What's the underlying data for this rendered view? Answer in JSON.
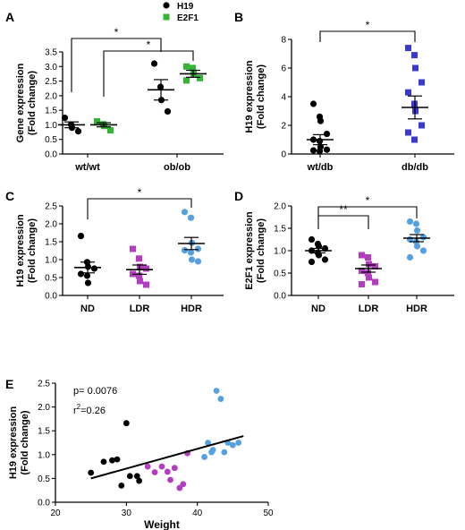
{
  "colors": {
    "black": "#000000",
    "green": "#33b533",
    "navy": "#3a3ad0",
    "purple": "#b43cc0",
    "lightblue": "#55a0e0"
  },
  "chart_data": [
    {
      "panel": "A",
      "type": "scatter",
      "ylabel_line1": "Gene expression",
      "ylabel_line2": "(Fold change)",
      "ylim": [
        0,
        3.5
      ],
      "yticks": [
        "0.0",
        "0.5",
        "1.0",
        "1.5",
        "2.0",
        "2.5",
        "3.0",
        "3.5"
      ],
      "categories": [
        "wt/wt",
        "ob/ob"
      ],
      "legend": [
        {
          "name": "H19",
          "color": "#000000",
          "shape": "circle"
        },
        {
          "name": "E2F1",
          "color": "#33b533",
          "shape": "square"
        }
      ],
      "groups": [
        {
          "category": "wt/wt",
          "series": "H19",
          "color": "#000000",
          "shape": "circle",
          "values": [
            1.24,
            1.01,
            0.9,
            0.78
          ],
          "mean": 1.0,
          "sem": 0.1
        },
        {
          "category": "wt/wt",
          "series": "E2F1",
          "color": "#33b533",
          "shape": "square",
          "values": [
            1.12,
            1.02,
            0.96,
            0.81
          ],
          "mean": 1.0,
          "sem": 0.07
        },
        {
          "category": "ob/ob",
          "series": "H19",
          "color": "#000000",
          "shape": "circle",
          "values": [
            3.1,
            2.3,
            1.85,
            1.46
          ],
          "mean": 2.2,
          "sem": 0.35
        },
        {
          "category": "ob/ob",
          "series": "E2F1",
          "color": "#33b533",
          "shape": "square",
          "values": [
            3.0,
            2.95,
            2.75,
            2.6,
            2.52
          ],
          "mean": 2.75,
          "sem": 0.12
        }
      ],
      "brackets": [
        {
          "label": "*"
        },
        {
          "label": "*"
        }
      ]
    },
    {
      "panel": "B",
      "type": "scatter",
      "ylabel_line1": "H19 expression",
      "ylabel_line2": "(Fold change)",
      "ylim": [
        0,
        8
      ],
      "yticks": [
        "0",
        "2",
        "4",
        "6",
        "8"
      ],
      "categories": [
        "wt/db",
        "db/db"
      ],
      "groups": [
        {
          "category": "wt/db",
          "color": "#000000",
          "shape": "circle",
          "values": [
            3.5,
            2.6,
            2.3,
            1.4,
            1.0,
            0.9,
            0.5,
            0.3,
            0.25,
            0.2
          ],
          "mean": 1.0,
          "sem": 0.35
        },
        {
          "category": "db/db",
          "color": "#3a3ad0",
          "shape": "square",
          "values": [
            7.4,
            6.9,
            6.0,
            5.0,
            4.3,
            3.5,
            3.0,
            2.0,
            1.5,
            1.0
          ],
          "mean": 3.25,
          "sem": 0.8
        }
      ],
      "brackets": [
        {
          "label": "*"
        }
      ]
    },
    {
      "panel": "C",
      "type": "scatter",
      "ylabel_line1": "H19 expression",
      "ylabel_line2": "(Fold change)",
      "ylim": [
        0,
        2.5
      ],
      "yticks": [
        "0.0",
        "0.5",
        "1.0",
        "1.5",
        "2.0",
        "2.5"
      ],
      "categories": [
        "ND",
        "LDR",
        "HDR"
      ],
      "groups": [
        {
          "category": "ND",
          "color": "#000000",
          "shape": "circle",
          "values": [
            1.66,
            0.93,
            0.8,
            0.75,
            0.6,
            0.55,
            0.35
          ],
          "mean": 0.78,
          "sem": 0.15
        },
        {
          "category": "LDR",
          "color": "#b43cc0",
          "shape": "square",
          "values": [
            1.3,
            1.03,
            0.8,
            0.75,
            0.6,
            0.55,
            0.4,
            0.3
          ],
          "mean": 0.72,
          "sem": 0.13
        },
        {
          "category": "HDR",
          "color": "#55a0e0",
          "shape": "circle",
          "values": [
            2.33,
            2.17,
            1.47,
            1.3,
            1.26,
            1.2,
            1.0,
            0.95
          ],
          "mean": 1.45,
          "sem": 0.17
        }
      ],
      "brackets": [
        {
          "label": "*"
        }
      ]
    },
    {
      "panel": "D",
      "type": "scatter",
      "ylabel_line1": "E2F1 expression",
      "ylabel_line2": "(Fold change)",
      "ylim": [
        0,
        2.0
      ],
      "yticks": [
        "0.0",
        "0.5",
        "1.0",
        "1.5",
        "2.0"
      ],
      "categories": [
        "ND",
        "LDR",
        "HDR"
      ],
      "groups": [
        {
          "category": "ND",
          "color": "#000000",
          "shape": "circle",
          "values": [
            1.25,
            1.15,
            1.1,
            1.05,
            1.0,
            0.95,
            0.9,
            0.8,
            0.75
          ],
          "mean": 1.0,
          "sem": 0.05
        },
        {
          "category": "LDR",
          "color": "#b43cc0",
          "shape": "square",
          "values": [
            0.9,
            0.85,
            0.7,
            0.65,
            0.55,
            0.5,
            0.4,
            0.3,
            0.25
          ],
          "mean": 0.6,
          "sem": 0.08
        },
        {
          "category": "HDR",
          "color": "#55a0e0",
          "shape": "circle",
          "values": [
            1.65,
            1.6,
            1.45,
            1.3,
            1.25,
            1.2,
            1.1,
            1.0,
            0.85
          ],
          "mean": 1.28,
          "sem": 0.08
        }
      ],
      "brackets": [
        {
          "label": "**"
        },
        {
          "label": "*"
        }
      ]
    },
    {
      "panel": "E",
      "type": "scatter",
      "ylabel_line1": "H19 expression",
      "ylabel_line2": "(Fold change)",
      "xlabel": "Weight",
      "xlim": [
        20,
        50
      ],
      "xticks": [
        "20",
        "30",
        "40",
        "50"
      ],
      "ylim": [
        0,
        2.5
      ],
      "yticks": [
        "0.0",
        "0.5",
        "1.0",
        "1.5",
        "2.0",
        "2.5"
      ],
      "annotation_p": "p= 0.0076",
      "annotation_r_prefix": "r",
      "annotation_r_sup": "2",
      "annotation_r_suffix": "=0.26",
      "fit_line": {
        "x": [
          25,
          46.5
        ],
        "y": [
          0.5,
          1.39
        ]
      },
      "series": [
        {
          "color": "#000000",
          "points": [
            [
              25,
              0.62
            ],
            [
              26.8,
              0.85
            ],
            [
              28,
              0.88
            ],
            [
              29.3,
              0.35
            ],
            [
              30,
              1.66
            ],
            [
              30.5,
              0.55
            ],
            [
              31.5,
              0.55
            ],
            [
              31.8,
              0.45
            ],
            [
              28.7,
              0.9
            ]
          ]
        },
        {
          "color": "#b43cc0",
          "points": [
            [
              33,
              0.75
            ],
            [
              34,
              0.63
            ],
            [
              35,
              0.75
            ],
            [
              36.2,
              0.47
            ],
            [
              36.8,
              0.72
            ],
            [
              37.5,
              0.3
            ],
            [
              38,
              0.38
            ],
            [
              38.6,
              1.03
            ],
            [
              35.8,
              0.64
            ]
          ]
        },
        {
          "color": "#55a0e0",
          "points": [
            [
              41,
              0.95
            ],
            [
              41.5,
              1.25
            ],
            [
              42,
              1.05
            ],
            [
              42.7,
              2.34
            ],
            [
              43.3,
              2.17
            ],
            [
              43.8,
              1.05
            ],
            [
              44.3,
              1.25
            ],
            [
              45,
              1.2
            ],
            [
              45.8,
              1.25
            ],
            [
              42.2,
              1.1
            ]
          ]
        }
      ]
    }
  ]
}
